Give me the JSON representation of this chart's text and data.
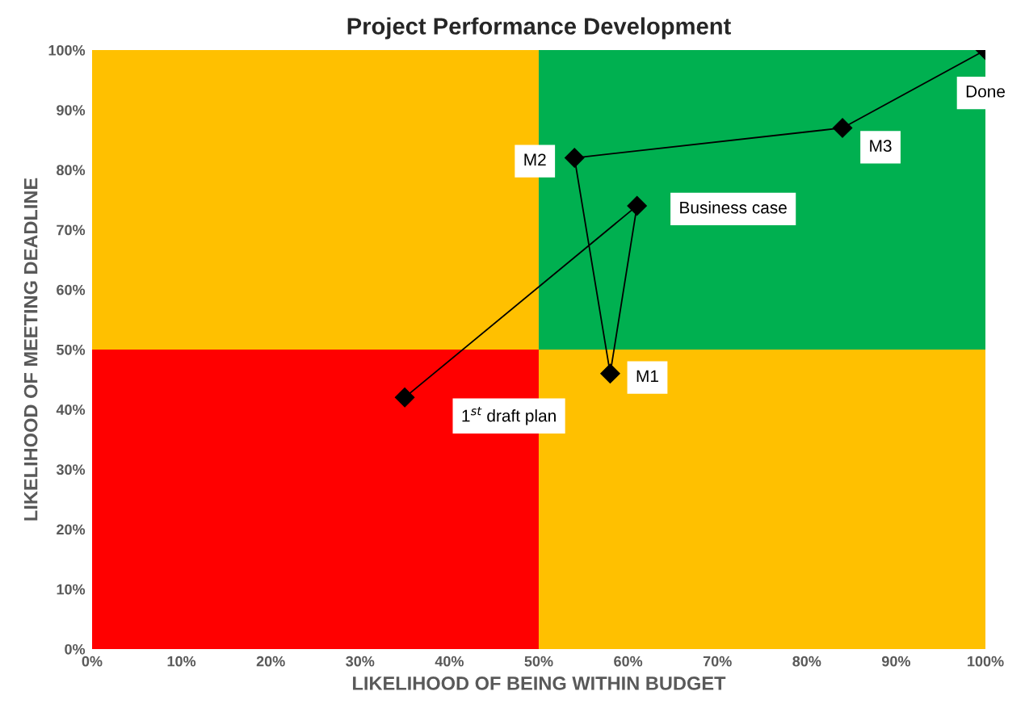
{
  "chart_data": {
    "type": "line",
    "title": "Project Performance Development",
    "xlabel": "LIKELIHOOD OF BEING WITHIN BUDGET",
    "ylabel": "LIKELIHOOD OF MEETING DEADLINE",
    "x": [
      35,
      61,
      58,
      54,
      84,
      100
    ],
    "series": [
      {
        "color": "#000000",
        "values": [
          42,
          74,
          46,
          82,
          87,
          100
        ]
      }
    ],
    "marker": "diamond",
    "line_style": "solid",
    "grid": false,
    "legend": false,
    "xlim": [
      0,
      100
    ],
    "ylim": [
      0,
      100
    ],
    "xticks": [
      {
        "value": 0,
        "label": "0%"
      },
      {
        "value": 10,
        "label": "10%"
      },
      {
        "value": 20,
        "label": "20%"
      },
      {
        "value": 30,
        "label": "30%"
      },
      {
        "value": 40,
        "label": "40%"
      },
      {
        "value": 50,
        "label": "50%"
      },
      {
        "value": 60,
        "label": "60%"
      },
      {
        "value": 70,
        "label": "70%"
      },
      {
        "value": 80,
        "label": "80%"
      },
      {
        "value": 90,
        "label": "90%"
      },
      {
        "value": 100,
        "label": "100%"
      }
    ],
    "yticks": [
      {
        "value": 0,
        "label": "0%"
      },
      {
        "value": 10,
        "label": "10%"
      },
      {
        "value": 20,
        "label": "20%"
      },
      {
        "value": 30,
        "label": "30%"
      },
      {
        "value": 40,
        "label": "40%"
      },
      {
        "value": 50,
        "label": "50%"
      },
      {
        "value": 60,
        "label": "60%"
      },
      {
        "value": 70,
        "label": "70%"
      },
      {
        "value": 80,
        "label": "80%"
      },
      {
        "value": 90,
        "label": "90%"
      },
      {
        "value": 100,
        "label": "100%"
      }
    ],
    "annotations": [
      "1$^{st}$ draft plan",
      "Business case",
      "M1",
      "M2",
      "M3",
      "Done"
    ]
  }
}
